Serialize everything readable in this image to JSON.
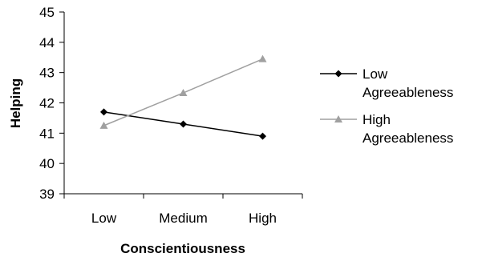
{
  "chart_data": {
    "type": "line",
    "xlabel": "Conscientiousness",
    "ylabel": "Helping",
    "categories": [
      "Low",
      "Medium",
      "High"
    ],
    "ylim": [
      39,
      45
    ],
    "yticks": [
      "39",
      "40",
      "41",
      "42",
      "43",
      "44",
      "45"
    ],
    "grid": false,
    "legend_position": "right",
    "series": [
      {
        "name": "Low Agreeableness",
        "legend_lines": [
          "Low",
          "Agreeableness"
        ],
        "values": [
          41.7,
          41.3,
          40.9
        ],
        "color": "#000000",
        "marker": "diamond"
      },
      {
        "name": "High Agreeableness",
        "legend_lines": [
          "High",
          "Agreeableness"
        ],
        "values": [
          41.25,
          42.33,
          43.45
        ],
        "color": "#a0a0a0",
        "marker": "triangle"
      }
    ]
  }
}
